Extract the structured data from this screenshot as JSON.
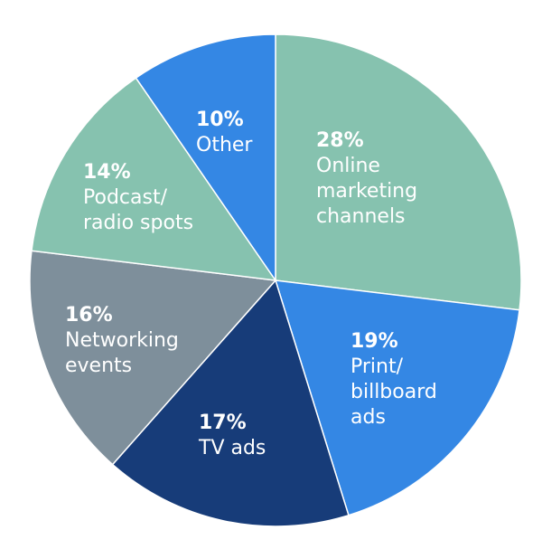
{
  "chart_data": {
    "type": "pie",
    "title": "",
    "slices": [
      {
        "percent_label": "28%",
        "value": 28,
        "label_lines": [
          "Online",
          "marketing",
          "channels"
        ],
        "color": "#86C2AF"
      },
      {
        "percent_label": "19%",
        "value": 19,
        "label_lines": [
          "Print/",
          "billboard",
          "ads"
        ],
        "color": "#3487E4"
      },
      {
        "percent_label": "17%",
        "value": 17,
        "label_lines": [
          "TV ads"
        ],
        "color": "#173C79"
      },
      {
        "percent_label": "16%",
        "value": 16,
        "label_lines": [
          "Networking",
          "events"
        ],
        "color": "#7E8F9B"
      },
      {
        "percent_label": "14%",
        "value": 14,
        "label_lines": [
          "Podcast/",
          "radio spots"
        ],
        "color": "#86C2AF"
      },
      {
        "percent_label": "10%",
        "value": 10,
        "label_lines": [
          "Other"
        ],
        "color": "#3487E4"
      }
    ]
  }
}
